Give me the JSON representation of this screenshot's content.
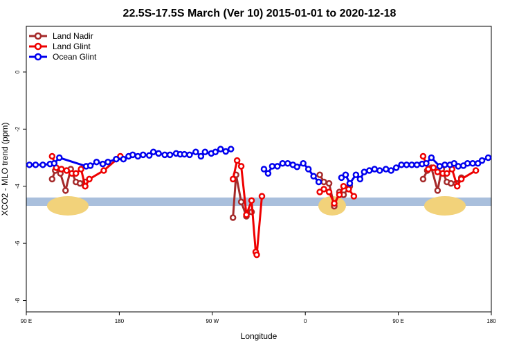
{
  "chart_data": {
    "type": "line",
    "title": "22.5S-17.5S March (Ver 10)   2015-01-01 to 2020-12-18",
    "x_label": "Longitude",
    "y_label": "XCO2 - MLO trend (ppm)",
    "xlim": [
      90,
      540
    ],
    "xticks": [
      {
        "value": 90,
        "label": "90 E"
      },
      180,
      {
        "value": 270,
        "label": "90 W"
      },
      {
        "value": 360,
        "label": "0"
      },
      {
        "value": 450,
        "label": "90 E"
      },
      {
        "value": 540,
        "label": "180"
      }
    ],
    "ylim": [
      -8.4,
      1.6
    ],
    "yticks": [
      0,
      -2,
      -4,
      -6,
      -8
    ],
    "legend": "top-left",
    "series": [
      {
        "name": "Land Nadir",
        "color": "#a52a2a",
        "x": [
          115,
          118,
          123,
          128,
          133,
          138,
          142,
          147,
          null,
          290,
          293,
          298,
          303,
          308,
          null,
          374,
          378,
          383,
          388,
          393,
          397,
          403,
          null,
          474,
          478,
          482,
          488,
          492,
          497,
          501,
          506,
          511
        ],
        "values": [
          -3.75,
          -3.45,
          -3.55,
          -4.15,
          -3.4,
          -3.85,
          -3.9,
          -3.85,
          null,
          -5.1,
          -3.6,
          -4.55,
          -5.05,
          -4.9,
          null,
          -3.6,
          -3.85,
          -3.9,
          -4.7,
          -4.2,
          -4.3,
          -4.0,
          null,
          -3.75,
          -3.45,
          -3.35,
          -4.15,
          -3.4,
          -3.85,
          -3.9,
          -3.9,
          -3.7
        ]
      },
      {
        "name": "Land Glint",
        "color": "#ee0000",
        "x": [
          115,
          119,
          124,
          129,
          134,
          138,
          143,
          147,
          151,
          165,
          181,
          null,
          290,
          294,
          298,
          303,
          308,
          312,
          313,
          318,
          null,
          374,
          378,
          383,
          388,
          393,
          397,
          402,
          407,
          null,
          474,
          479,
          484,
          488,
          493,
          497,
          502,
          507,
          511,
          525
        ],
        "values": [
          -2.95,
          -3.35,
          -3.4,
          -3.45,
          -3.55,
          -3.55,
          -3.4,
          -4.0,
          -3.75,
          -3.45,
          -2.95,
          null,
          -3.75,
          -3.1,
          -3.3,
          -5.0,
          -4.5,
          -6.3,
          -6.4,
          -4.35,
          null,
          -4.2,
          -4.1,
          -4.2,
          -4.6,
          -4.3,
          -4.0,
          -4.1,
          -4.35,
          null,
          -2.95,
          -3.4,
          -3.35,
          -3.5,
          -3.55,
          -3.55,
          -3.4,
          -4.0,
          -3.75,
          -3.45
        ]
      },
      {
        "name": "Ocean Glint",
        "color": "#0000ee",
        "x": [
          93,
          99,
          106,
          113,
          117,
          122,
          148,
          152,
          158,
          164,
          169,
          177,
          184,
          189,
          193,
          198,
          203,
          209,
          213,
          218,
          224,
          229,
          235,
          239,
          243,
          248,
          254,
          259,
          263,
          269,
          273,
          278,
          283,
          288,
          null,
          320,
          324,
          328,
          333,
          338,
          343,
          348,
          352,
          358,
          363,
          368,
          373,
          null,
          395,
          399,
          403,
          409,
          413,
          417,
          422,
          427,
          432,
          438,
          443,
          448,
          453,
          458,
          463,
          468,
          473,
          477,
          482,
          490,
          495,
          500,
          504,
          508,
          513,
          517,
          522,
          527,
          531,
          537
        ],
        "values": [
          -3.25,
          -3.25,
          -3.25,
          -3.22,
          -3.2,
          -3.0,
          -3.3,
          -3.28,
          -3.15,
          -3.22,
          -3.15,
          -3.05,
          -3.05,
          -2.95,
          -2.9,
          -2.95,
          -2.9,
          -2.92,
          -2.8,
          -2.85,
          -2.9,
          -2.9,
          -2.85,
          -2.88,
          -2.88,
          -2.9,
          -2.8,
          -2.95,
          -2.8,
          -2.85,
          -2.8,
          -2.7,
          -2.78,
          -2.7,
          null,
          -3.4,
          -3.55,
          -3.3,
          -3.3,
          -3.2,
          -3.2,
          -3.25,
          -3.32,
          -3.2,
          -3.4,
          -3.65,
          -3.85,
          null,
          -3.7,
          -3.6,
          -3.9,
          -3.6,
          -3.75,
          -3.5,
          -3.45,
          -3.4,
          -3.45,
          -3.4,
          -3.45,
          -3.35,
          -3.25,
          -3.25,
          -3.25,
          -3.25,
          -3.22,
          -3.2,
          -3.0,
          -3.3,
          -3.25,
          -3.25,
          -3.2,
          -3.3,
          -3.28,
          -3.2,
          -3.2,
          -3.2,
          -3.1,
          -3.0
        ]
      }
    ]
  }
}
